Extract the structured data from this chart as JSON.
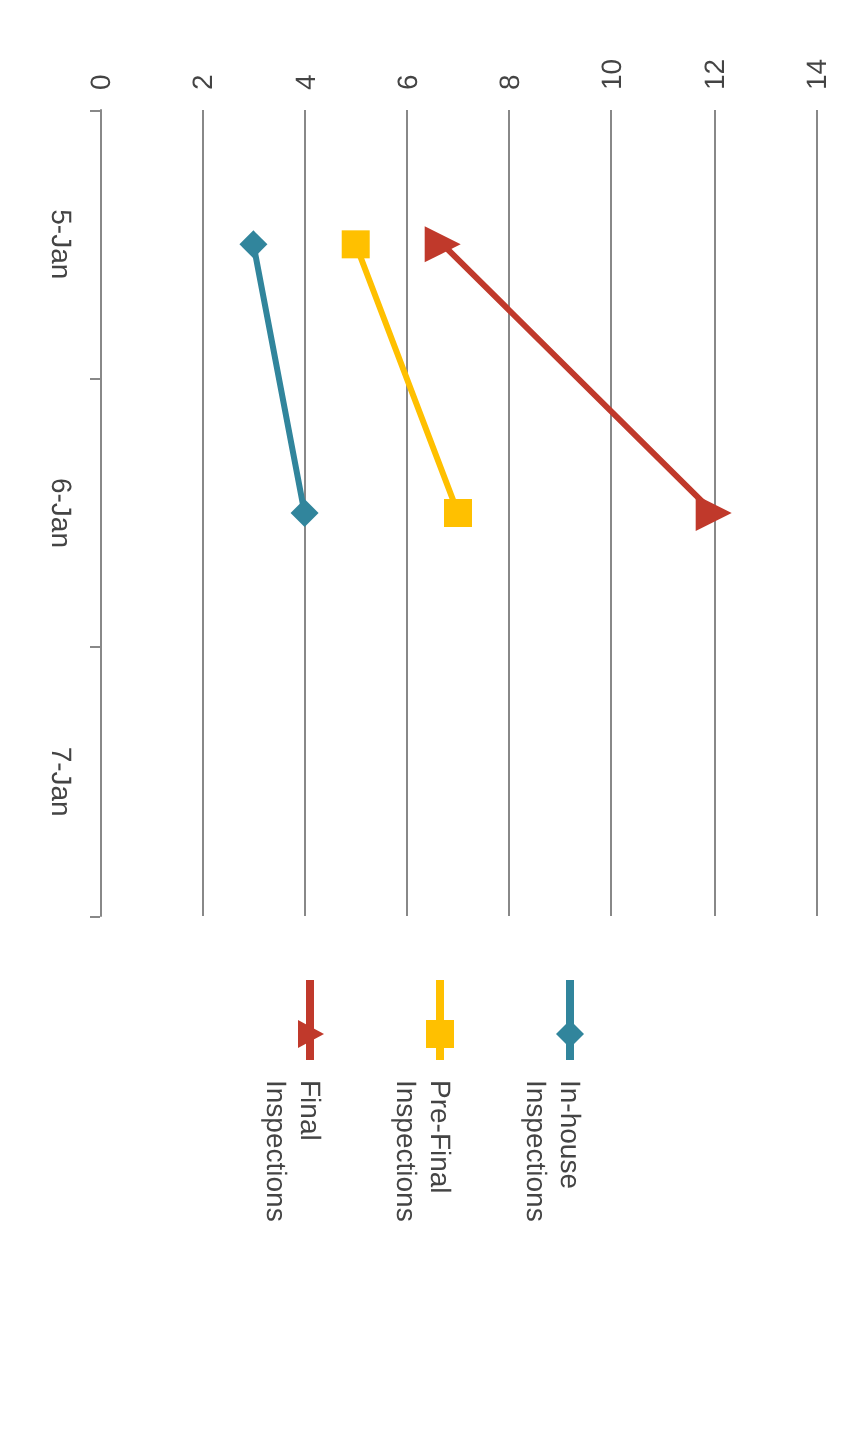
{
  "chart_data": {
    "type": "line",
    "orientation": "horizontal",
    "categories": [
      "5-Jan",
      "6-Jan",
      "7-Jan"
    ],
    "series": [
      {
        "name": "In-house Inspections",
        "color": "#31859c",
        "marker": "diamond",
        "values": [
          3,
          4,
          null
        ]
      },
      {
        "name": "Pre-Final Inspections",
        "color": "#ffc000",
        "marker": "square",
        "values": [
          5,
          7,
          null
        ]
      },
      {
        "name": "Final Inspections",
        "color": "#c0392b",
        "marker": "triangle",
        "values": [
          6.7,
          12,
          null
        ]
      }
    ],
    "xlim": [
      0,
      14
    ],
    "xticks": [
      0,
      2,
      4,
      6,
      8,
      10,
      12,
      14
    ],
    "grid": "x",
    "legend": "bottom"
  }
}
